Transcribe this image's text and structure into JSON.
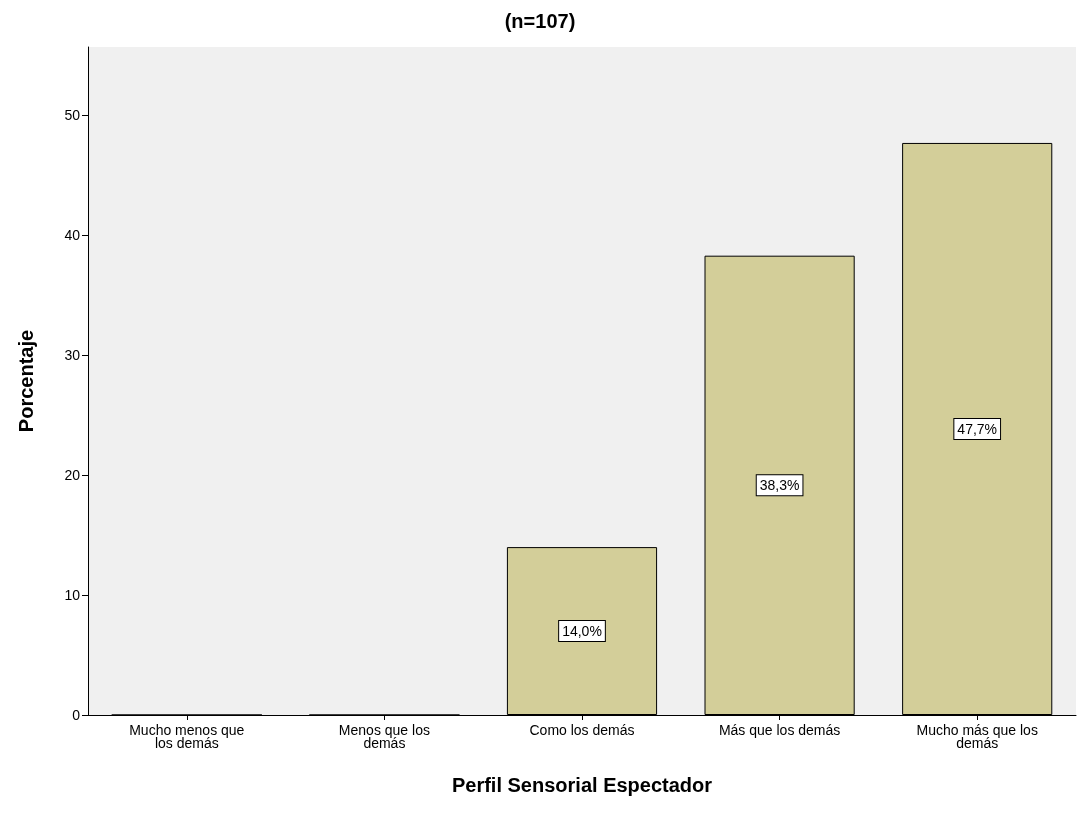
{
  "chart_data": {
    "type": "bar",
    "title": "(n=107)",
    "xlabel": "Perfil Sensorial Espectador",
    "ylabel": "Porcentaje",
    "categories": [
      "Mucho menos que\nlos demás",
      "Menos que los\ndemás",
      "Como los demás",
      "Más que los demás",
      "Mucho más que los\ndemás"
    ],
    "values": [
      0,
      0,
      14.0,
      38.3,
      47.7
    ],
    "value_labels": [
      null,
      null,
      "14,0%",
      "38,3%",
      "47,7%"
    ],
    "color": "#d3ce99",
    "ylim": [
      0,
      55.7
    ],
    "yticks": [
      0,
      10,
      20,
      30,
      40,
      50
    ],
    "grid": false
  }
}
